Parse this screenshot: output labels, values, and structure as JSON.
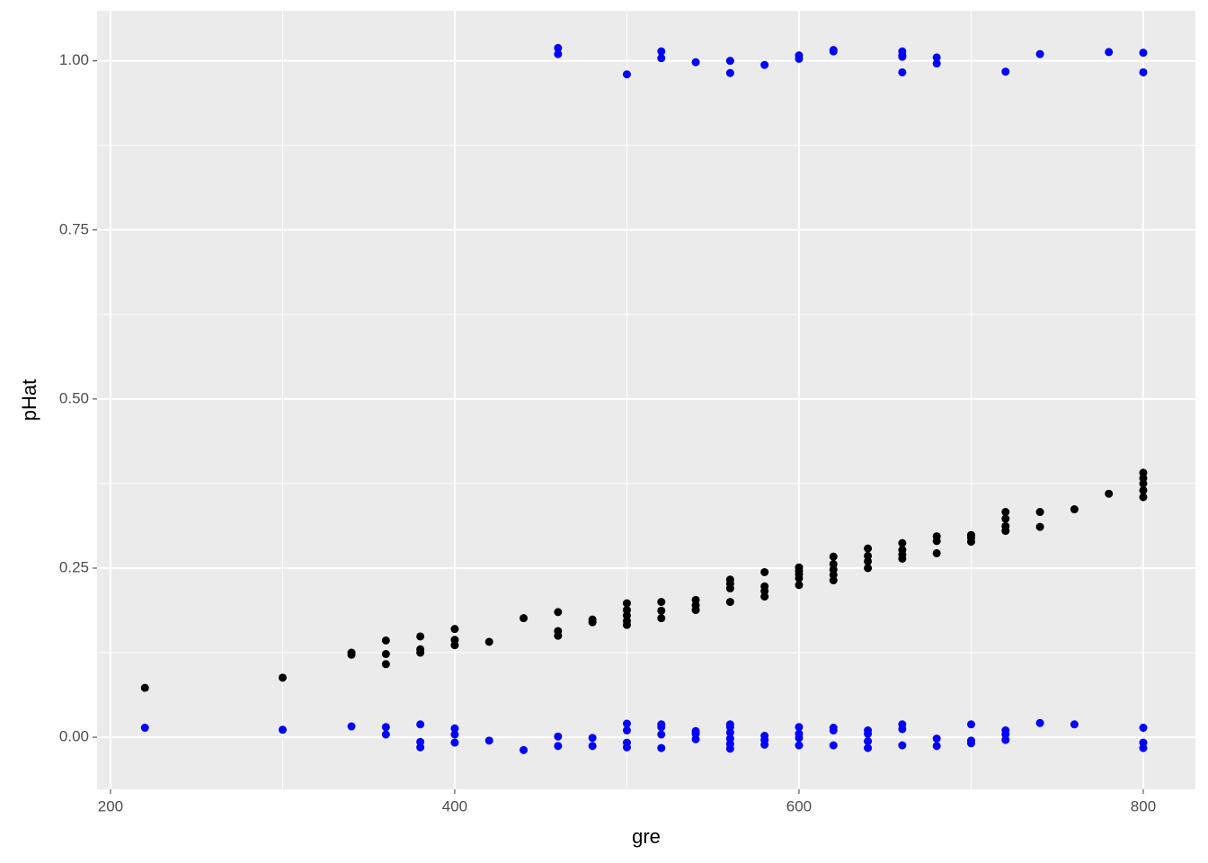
{
  "chart_data": {
    "type": "scatter",
    "x_label": "gre",
    "y_label": "pHat",
    "xlim": [
      192.2,
      830.3
    ],
    "ylim": [
      -0.077,
      1.074
    ],
    "xticks": [
      200,
      400,
      600,
      800
    ],
    "yticks": [
      {
        "value": 0,
        "label": "0.00"
      },
      {
        "value": 0.25,
        "label": "0.25"
      },
      {
        "value": 0.5,
        "label": "0.50"
      },
      {
        "value": 0.75,
        "label": "0.75"
      },
      {
        "value": 1,
        "label": "1.00"
      }
    ],
    "x_minor_ticks": [
      300,
      500,
      700
    ],
    "y_minor_ticks": [
      0.125,
      0.375,
      0.625,
      0.875
    ],
    "grid": true,
    "series": [
      {
        "color": "#000000",
        "x": [
          220,
          300,
          340,
          340,
          360,
          360,
          360,
          380,
          380,
          380,
          400,
          400,
          400,
          420,
          440,
          460,
          460,
          460,
          480,
          480,
          500,
          500,
          500,
          500,
          500,
          520,
          520,
          520,
          540,
          540,
          540,
          560,
          560,
          560,
          560,
          580,
          580,
          580,
          580,
          600,
          600,
          600,
          600,
          600,
          620,
          620,
          620,
          620,
          620,
          640,
          640,
          640,
          640,
          660,
          660,
          660,
          660,
          680,
          680,
          680,
          700,
          700,
          700,
          720,
          720,
          720,
          720,
          740,
          740,
          760,
          780,
          800,
          800,
          800,
          800,
          800
        ],
        "values": [
          0.073,
          0.088,
          0.122,
          0.125,
          0.108,
          0.123,
          0.143,
          0.125,
          0.13,
          0.149,
          0.136,
          0.144,
          0.16,
          0.141,
          0.176,
          0.15,
          0.157,
          0.185,
          0.17,
          0.174,
          0.166,
          0.172,
          0.18,
          0.188,
          0.198,
          0.176,
          0.187,
          0.2,
          0.188,
          0.195,
          0.203,
          0.2,
          0.22,
          0.227,
          0.233,
          0.208,
          0.216,
          0.223,
          0.244,
          0.225,
          0.235,
          0.241,
          0.246,
          0.251,
          0.232,
          0.24,
          0.248,
          0.256,
          0.267,
          0.25,
          0.26,
          0.268,
          0.279,
          0.264,
          0.27,
          0.277,
          0.287,
          0.272,
          0.29,
          0.297,
          0.289,
          0.295,
          0.299,
          0.305,
          0.312,
          0.323,
          0.333,
          0.311,
          0.333,
          0.337,
          0.36,
          0.355,
          0.365,
          0.375,
          0.383,
          0.391
        ]
      },
      {
        "color": "#0000ff",
        "x": [
          460,
          460,
          500,
          520,
          520,
          540,
          560,
          560,
          580,
          600,
          600,
          620,
          620,
          660,
          660,
          660,
          660,
          680,
          680,
          720,
          740,
          780,
          800,
          800,
          220,
          300,
          340,
          360,
          360,
          380,
          380,
          380,
          400,
          400,
          400,
          420,
          440,
          460,
          460,
          480,
          480,
          500,
          500,
          500,
          500,
          520,
          520,
          520,
          520,
          540,
          540,
          540,
          560,
          560,
          560,
          560,
          560,
          560,
          580,
          580,
          580,
          600,
          600,
          600,
          600,
          620,
          620,
          620,
          640,
          640,
          640,
          640,
          660,
          660,
          660,
          680,
          680,
          700,
          700,
          700,
          720,
          720,
          720,
          740,
          760,
          800,
          800,
          800
        ],
        "values": [
          1.019,
          1.01,
          0.98,
          1.014,
          1.004,
          0.998,
          1.0,
          0.982,
          0.994,
          1.008,
          1.003,
          1.016,
          1.014,
          1.014,
          1.008,
          1.006,
          0.983,
          1.005,
          0.996,
          0.984,
          1.01,
          1.013,
          1.012,
          0.983,
          0.014,
          0.011,
          0.016,
          0.015,
          0.004,
          0.019,
          -0.007,
          -0.015,
          0.013,
          0.004,
          -0.008,
          -0.005,
          -0.019,
          0.001,
          -0.013,
          -0.001,
          -0.013,
          0.02,
          0.01,
          -0.008,
          -0.015,
          0.019,
          0.015,
          0.004,
          -0.016,
          0.009,
          0.005,
          -0.003,
          0.019,
          0.015,
          0.007,
          -0.002,
          -0.01,
          -0.017,
          0.002,
          -0.004,
          -0.011,
          0.015,
          0.005,
          -0.001,
          -0.012,
          0.014,
          0.01,
          -0.012,
          0.01,
          0.005,
          -0.006,
          -0.016,
          0.019,
          0.012,
          -0.012,
          -0.002,
          -0.013,
          0.019,
          -0.005,
          -0.009,
          0.01,
          0.004,
          -0.004,
          0.021,
          0.019,
          0.014,
          -0.008,
          -0.016
        ]
      }
    ]
  }
}
